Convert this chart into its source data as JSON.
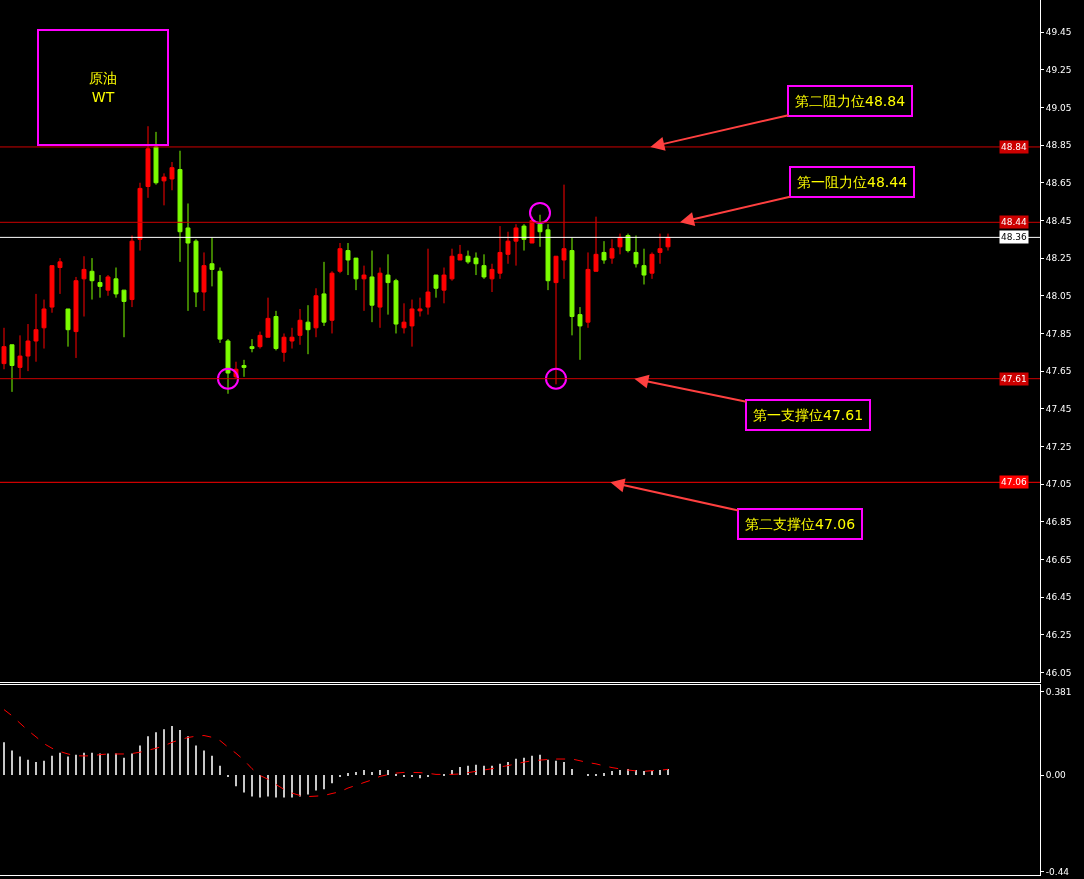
{
  "chart_data": [
    {
      "type": "candlestick",
      "categories": [
        null,
        null,
        null,
        null,
        null,
        null,
        null,
        null,
        null,
        null,
        null,
        null,
        null,
        null,
        null,
        null,
        null,
        null,
        null,
        null,
        null,
        null,
        null,
        null,
        null,
        null,
        null,
        null,
        null,
        null,
        null,
        null,
        null,
        null,
        null,
        null,
        null,
        null,
        null,
        null,
        null,
        null,
        null,
        null,
        null,
        null,
        null,
        null,
        null,
        null,
        null,
        null,
        null,
        null,
        null,
        null,
        null,
        null,
        null,
        null,
        null,
        null,
        null,
        null,
        null,
        null,
        null,
        null,
        null,
        null,
        null,
        null,
        null,
        null,
        null,
        null,
        null,
        null,
        null,
        null,
        null,
        null,
        null,
        null,
        null,
        null,
        null,
        null,
        null,
        null,
        null,
        null,
        null,
        null,
        null,
        null,
        null,
        null,
        null,
        null,
        null,
        null,
        null,
        null,
        null,
        null,
        null,
        null,
        null,
        null,
        null,
        null,
        null,
        null,
        null,
        null,
        null,
        null,
        null,
        null,
        null,
        null,
        null,
        null,
        null,
        null,
        null,
        null,
        null,
        null
      ],
      "ohlc": [
        [
          47.69,
          47.88,
          47.66,
          47.78
        ],
        [
          47.79,
          47.79,
          47.54,
          47.68
        ],
        [
          47.67,
          47.84,
          47.61,
          47.73
        ],
        [
          47.73,
          47.9,
          47.65,
          47.81
        ],
        [
          47.81,
          48.06,
          47.7,
          47.87
        ],
        [
          47.88,
          48.03,
          47.77,
          47.98
        ],
        [
          47.99,
          48.21,
          47.96,
          48.21
        ],
        [
          48.2,
          48.25,
          48.06,
          48.23
        ],
        [
          47.98,
          47.98,
          47.78,
          47.87
        ],
        [
          47.86,
          48.15,
          47.72,
          48.13
        ],
        [
          48.14,
          48.26,
          47.94,
          48.19
        ],
        [
          48.18,
          48.25,
          48.03,
          48.13
        ],
        [
          48.12,
          48.16,
          48.04,
          48.1
        ],
        [
          48.08,
          48.16,
          48.05,
          48.15
        ],
        [
          48.14,
          48.2,
          48.04,
          48.06
        ],
        [
          48.08,
          48.08,
          47.83,
          48.02
        ],
        [
          48.03,
          48.37,
          47.99,
          48.34
        ],
        [
          48.35,
          48.65,
          48.29,
          48.62
        ],
        [
          48.63,
          48.95,
          48.57,
          48.83
        ],
        [
          48.84,
          48.92,
          48.64,
          48.65
        ],
        [
          48.66,
          48.7,
          48.53,
          48.68
        ],
        [
          48.67,
          48.76,
          48.61,
          48.73
        ],
        [
          48.72,
          48.82,
          48.23,
          48.39
        ],
        [
          48.41,
          48.54,
          47.97,
          48.33
        ],
        [
          48.34,
          48.35,
          47.99,
          48.07
        ],
        [
          48.07,
          48.28,
          47.97,
          48.21
        ],
        [
          48.22,
          48.36,
          48.1,
          48.19
        ],
        [
          48.18,
          48.2,
          47.8,
          47.82
        ],
        [
          47.81,
          47.82,
          47.53,
          47.64
        ],
        [
          47.62,
          47.7,
          47.61,
          47.66
        ],
        [
          47.68,
          47.71,
          47.62,
          47.67
        ],
        [
          47.78,
          47.82,
          47.75,
          47.77
        ],
        [
          47.78,
          47.86,
          47.77,
          47.84
        ],
        [
          47.83,
          48.04,
          47.83,
          47.93
        ],
        [
          47.94,
          47.97,
          47.76,
          47.77
        ],
        [
          47.75,
          47.85,
          47.7,
          47.83
        ],
        [
          47.81,
          47.88,
          47.77,
          47.83
        ],
        [
          47.84,
          47.98,
          47.79,
          47.92
        ],
        [
          47.91,
          48.0,
          47.74,
          47.87
        ],
        [
          47.88,
          48.09,
          47.83,
          48.05
        ],
        [
          48.06,
          48.23,
          47.89,
          47.91
        ],
        [
          47.92,
          48.18,
          47.85,
          48.17
        ],
        [
          48.18,
          48.33,
          48.17,
          48.3
        ],
        [
          48.29,
          48.33,
          48.16,
          48.24
        ],
        [
          48.25,
          48.25,
          48.08,
          48.14
        ],
        [
          48.14,
          48.21,
          47.97,
          48.16
        ],
        [
          48.15,
          48.29,
          47.91,
          48.0
        ],
        [
          47.99,
          48.2,
          47.88,
          48.17
        ],
        [
          48.16,
          48.27,
          47.95,
          48.12
        ],
        [
          48.13,
          48.14,
          47.85,
          47.9
        ],
        [
          47.88,
          48.01,
          47.85,
          47.91
        ],
        [
          47.89,
          48.03,
          47.78,
          47.98
        ],
        [
          47.97,
          48.04,
          47.94,
          47.98
        ],
        [
          47.99,
          48.3,
          47.95,
          48.07
        ],
        [
          48.16,
          48.16,
          48.04,
          48.09
        ],
        [
          48.08,
          48.2,
          48.01,
          48.16
        ],
        [
          48.14,
          48.3,
          48.13,
          48.26
        ],
        [
          48.24,
          48.32,
          48.24,
          48.27
        ],
        [
          48.26,
          48.29,
          48.22,
          48.23
        ],
        [
          48.25,
          48.28,
          48.16,
          48.22
        ],
        [
          48.21,
          48.27,
          48.14,
          48.15
        ],
        [
          48.14,
          48.22,
          48.07,
          48.19
        ],
        [
          48.17,
          48.42,
          48.14,
          48.28
        ],
        [
          48.27,
          48.39,
          48.22,
          48.34
        ],
        [
          48.34,
          48.43,
          48.21,
          48.41
        ],
        [
          48.42,
          48.43,
          48.29,
          48.35
        ],
        [
          48.33,
          48.47,
          48.33,
          48.45
        ],
        [
          48.43,
          48.48,
          48.31,
          48.39
        ],
        [
          48.4,
          48.43,
          48.08,
          48.13
        ],
        [
          48.12,
          48.26,
          47.58,
          48.26
        ],
        [
          48.24,
          48.64,
          48.14,
          48.3
        ],
        [
          48.29,
          48.36,
          47.84,
          47.94
        ],
        [
          47.95,
          47.99,
          47.71,
          47.89
        ],
        [
          47.91,
          48.28,
          47.88,
          48.19
        ],
        [
          48.18,
          48.47,
          48.18,
          48.27
        ],
        [
          48.28,
          48.34,
          48.22,
          48.24
        ],
        [
          48.25,
          48.35,
          48.22,
          48.3
        ],
        [
          48.31,
          48.38,
          48.27,
          48.36
        ],
        [
          48.37,
          48.38,
          48.28,
          48.29
        ],
        [
          48.28,
          48.37,
          48.2,
          48.22
        ],
        [
          48.21,
          48.3,
          48.11,
          48.16
        ],
        [
          48.17,
          48.28,
          48.14,
          48.27
        ],
        [
          48.28,
          48.38,
          48.22,
          48.3
        ],
        [
          48.31,
          48.38,
          48.29,
          48.36
        ],
        null,
        null,
        null,
        null,
        null,
        null,
        null,
        null,
        null,
        null,
        null,
        null,
        null,
        null,
        null,
        null,
        null,
        null,
        null,
        null,
        null,
        null,
        null,
        null,
        null,
        null,
        null,
        null,
        null,
        null,
        null,
        null,
        null,
        null,
        null,
        null,
        null,
        null,
        null,
        null,
        null,
        null,
        null,
        null,
        null,
        null
      ],
      "colors": [
        "#ff0000",
        "#7cfc00",
        "#ff0000",
        "#ff0000",
        "#ff0000",
        "#ff0000",
        "#ff0000",
        "#ff0000",
        "#7cfc00",
        "#ff0000",
        "#ff0000",
        "#7cfc00",
        "#7cfc00",
        "#ff0000",
        "#7cfc00",
        "#7cfc00",
        "#ff0000",
        "#ff0000",
        "#ff0000",
        "#7cfc00",
        "#ff0000",
        "#ff0000",
        "#7cfc00",
        "#7cfc00",
        "#7cfc00",
        "#ff0000",
        "#7cfc00",
        "#7cfc00",
        "#7cfc00",
        "#ff0000",
        "#7cfc00",
        "#7cfc00",
        "#ff0000",
        "#ff0000",
        "#7cfc00",
        "#ff0000",
        "#ff0000",
        "#ff0000",
        "#7cfc00",
        "#ff0000",
        "#7cfc00",
        "#ff0000",
        "#ff0000",
        "#7cfc00",
        "#7cfc00",
        "#ff0000",
        "#7cfc00",
        "#ff0000",
        "#7cfc00",
        "#7cfc00",
        "#ff0000",
        "#ff0000",
        "#ff0000",
        "#ff0000",
        "#7cfc00",
        "#ff0000",
        "#ff0000",
        "#ff0000",
        "#7cfc00",
        "#7cfc00",
        "#7cfc00",
        "#ff0000",
        "#ff0000",
        "#ff0000",
        "#ff0000",
        "#7cfc00",
        "#ff0000",
        "#7cfc00",
        "#7cfc00",
        "#ff0000",
        "#ff0000",
        "#7cfc00",
        "#7cfc00",
        "#ff0000",
        "#ff0000",
        "#7cfc00",
        "#ff0000",
        "#ff0000",
        "#7cfc00",
        "#7cfc00",
        "#7cfc00",
        "#ff0000",
        "#ff0000",
        "#ff0000",
        null,
        null,
        null,
        null,
        null,
        null,
        null,
        null,
        null,
        null,
        null,
        null,
        null,
        null,
        null,
        null,
        null,
        null,
        null,
        null,
        null,
        null,
        null,
        null,
        null,
        null,
        null,
        null,
        null,
        null,
        null,
        null,
        null,
        null,
        null,
        null,
        null,
        null,
        null,
        null,
        null,
        null,
        null,
        null,
        null,
        null
      ],
      "series": [
        {
          "type": "scatter",
          "marker": "circle",
          "color": "#ff00ff",
          "values": [
            null,
            null,
            null,
            null,
            null,
            null,
            null,
            null,
            null,
            null,
            null,
            null,
            null,
            null,
            null,
            null,
            null,
            null,
            null,
            null,
            null,
            null,
            null,
            null,
            null,
            null,
            null,
            null,
            47.61,
            null,
            null,
            null,
            null,
            null,
            null,
            null,
            null,
            null,
            null,
            null,
            null,
            null,
            null,
            null,
            null,
            null,
            null,
            null,
            null,
            null,
            null,
            null,
            null,
            null,
            null,
            null,
            null,
            null,
            null,
            null,
            null,
            null,
            null,
            null,
            null,
            null,
            null,
            48.49,
            null,
            47.61,
            null,
            null,
            null,
            null,
            null,
            null,
            null,
            null,
            null,
            null,
            null,
            null,
            null,
            null,
            null,
            null,
            null,
            null,
            null,
            null,
            null,
            null,
            null,
            null,
            null,
            null,
            null,
            null,
            null,
            null,
            null,
            null,
            null,
            null,
            null,
            null,
            null,
            null,
            null,
            null,
            null,
            null,
            null,
            null,
            null,
            null,
            null,
            null,
            null,
            null,
            null,
            null,
            null,
            null,
            null,
            null,
            null,
            null,
            null,
            null
          ]
        }
      ],
      "ylim": [
        46.0,
        49.62
      ],
      "yticks": [
        46.05,
        46.25,
        46.45,
        46.65,
        46.85,
        47.05,
        47.25,
        47.45,
        47.65,
        47.85,
        48.05,
        48.25,
        48.45,
        48.65,
        48.85,
        49.05,
        49.25,
        49.45
      ],
      "ref_lines": [
        {
          "axis": "y",
          "value": 48.84,
          "label": "48.84",
          "color": "#cc0000"
        },
        {
          "axis": "y",
          "value": 48.44,
          "label": "48.44",
          "color": "#cc0000"
        },
        {
          "axis": "y",
          "value": 48.36,
          "label": "48.36",
          "color": "#ffffff"
        },
        {
          "axis": "y",
          "value": 47.61,
          "label": "47.61",
          "color": "#cc0000"
        },
        {
          "axis": "y",
          "value": 47.06,
          "label": "47.06",
          "color": "#ff0000"
        }
      ],
      "annotations": [
        "原油\nWT",
        {
          "text": "第二阻力位48.84",
          "y": 48.84
        },
        {
          "text": "第一阻力位48.44",
          "y": 48.44
        },
        {
          "text": "第一支撑位47.61",
          "y": 47.61
        },
        {
          "text": "第二支撑位47.06",
          "y": 47.06
        }
      ],
      "tick_labels": "y"
    },
    {
      "type": "bar",
      "categories": [
        null,
        null,
        null,
        null,
        null,
        null,
        null,
        null,
        null,
        null,
        null,
        null,
        null,
        null,
        null,
        null,
        null,
        null,
        null,
        null,
        null,
        null,
        null,
        null,
        null,
        null,
        null,
        null,
        null,
        null,
        null,
        null,
        null,
        null,
        null,
        null,
        null,
        null,
        null,
        null,
        null,
        null,
        null,
        null,
        null,
        null,
        null,
        null,
        null,
        null,
        null,
        null,
        null,
        null,
        null,
        null,
        null,
        null,
        null,
        null,
        null,
        null,
        null,
        null,
        null,
        null,
        null,
        null,
        null,
        null,
        null,
        null,
        null,
        null,
        null,
        null,
        null,
        null,
        null,
        null,
        null,
        null,
        null,
        null,
        null,
        null,
        null,
        null,
        null,
        null,
        null,
        null,
        null,
        null,
        null,
        null,
        null,
        null,
        null,
        null,
        null,
        null,
        null,
        null,
        null,
        null,
        null,
        null,
        null,
        null,
        null,
        null,
        null,
        null,
        null,
        null,
        null,
        null,
        null,
        null,
        null,
        null,
        null,
        null,
        null,
        null,
        null,
        null,
        null,
        null
      ],
      "series": [
        {
          "type": "bar",
          "color": "#c8c8c8",
          "values": [
            0.149,
            0.112,
            0.084,
            0.07,
            0.06,
            0.065,
            0.088,
            0.102,
            0.084,
            0.093,
            0.102,
            0.102,
            0.098,
            0.098,
            0.098,
            0.079,
            0.098,
            0.135,
            0.177,
            0.195,
            0.209,
            0.223,
            0.205,
            0.177,
            0.135,
            0.112,
            0.088,
            0.042,
            -0.009,
            -0.051,
            -0.079,
            -0.098,
            -0.102,
            -0.098,
            -0.102,
            -0.102,
            -0.102,
            -0.098,
            -0.088,
            -0.07,
            -0.065,
            -0.037,
            -0.009,
            0.009,
            0.014,
            0.023,
            0.014,
            0.023,
            0.023,
            0.005,
            -0.005,
            -0.009,
            -0.014,
            -0.005,
            0,
            0.005,
            0.023,
            0.037,
            0.042,
            0.047,
            0.042,
            0.042,
            0.051,
            0.06,
            0.074,
            0.079,
            0.088,
            0.093,
            0.07,
            0.065,
            0.06,
            0.028,
            0,
            0.005,
            0.005,
            0.009,
            0.019,
            0.023,
            0.028,
            0.023,
            0.019,
            0.019,
            0.023,
            0.028,
            null,
            null,
            null,
            null,
            null,
            null,
            null,
            null,
            null,
            null,
            null,
            null,
            null,
            null,
            null,
            null,
            null,
            null,
            null,
            null,
            null,
            null,
            null,
            null,
            null,
            null,
            null,
            null,
            null,
            null,
            null,
            null,
            null,
            null,
            null,
            null,
            null,
            null,
            null,
            null,
            null,
            null,
            null,
            null,
            null,
            null
          ]
        },
        {
          "type": "line",
          "color": "#ff0000",
          "line_style": "dashed",
          "values": [
            0.298,
            0.27,
            0.236,
            0.203,
            0.174,
            0.143,
            0.122,
            0.107,
            0.096,
            0.088,
            0.087,
            0.088,
            0.093,
            0.096,
            0.096,
            0.096,
            0.098,
            0.104,
            0.113,
            0.122,
            0.133,
            0.149,
            0.161,
            0.171,
            0.177,
            0.18,
            0.172,
            0.157,
            0.127,
            0.099,
            0.068,
            0.029,
            -0.002,
            -0.019,
            -0.043,
            -0.065,
            -0.082,
            -0.093,
            -0.098,
            -0.096,
            -0.093,
            -0.084,
            -0.076,
            -0.059,
            -0.047,
            -0.034,
            -0.022,
            -0.006,
            0.002,
            0.009,
            0.012,
            0.012,
            0.011,
            0.008,
            0.003,
            0.003,
            0.003,
            0.005,
            0.011,
            0.017,
            0.023,
            0.029,
            0.037,
            0.043,
            0.051,
            0.059,
            0.065,
            0.068,
            0.071,
            0.073,
            0.073,
            0.073,
            0.065,
            0.057,
            0.051,
            0.042,
            0.034,
            0.028,
            0.023,
            0.019,
            0.017,
            0.02,
            0.022,
            0.026,
            null,
            null,
            null,
            null,
            null,
            null,
            null,
            null,
            null,
            null,
            null,
            null,
            null,
            null,
            null,
            null,
            null,
            null,
            null,
            null,
            null,
            null,
            null,
            null,
            null,
            null,
            null,
            null,
            null,
            null,
            null,
            null,
            null,
            null,
            null,
            null,
            null,
            null,
            null,
            null,
            null,
            null,
            null,
            null,
            null,
            null
          ]
        }
      ],
      "ylim": [
        -0.455,
        0.41
      ],
      "yticks": [
        0.381,
        {
          "value": 0,
          "label": "0.00"
        },
        -0.44
      ],
      "tick_labels": "y"
    }
  ]
}
